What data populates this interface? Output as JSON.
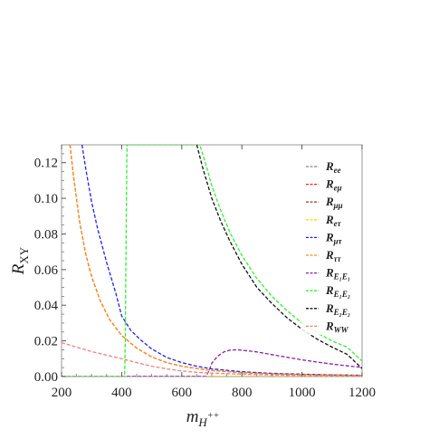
{
  "chart_data": {
    "type": "line",
    "xlabel": "m_{H++}",
    "ylabel": "R_XY",
    "xlim": [
      200,
      1200
    ],
    "ylim": [
      0,
      0.13
    ],
    "x_ticks": [
      200,
      400,
      600,
      800,
      1000,
      1200
    ],
    "y_ticks": [
      0.0,
      0.02,
      0.04,
      0.06,
      0.08,
      0.1,
      0.12
    ],
    "x_tick_labels": [
      "200",
      "400",
      "600",
      "800",
      "1000",
      "1200"
    ],
    "y_tick_labels": [
      "0.00",
      "0.02",
      "0.04",
      "0.06",
      "0.08",
      "0.10",
      "0.12"
    ],
    "grid": false,
    "legend_position": "top-right",
    "series": [
      {
        "name": "R_ee",
        "label": "R",
        "sub": "ee",
        "color": "#888888",
        "dashed": true,
        "x": [
          200,
          300,
          400,
          500,
          600,
          700,
          800,
          900,
          1000,
          1100,
          1200
        ],
        "y": [
          0.0,
          0.0,
          0.0,
          0.0,
          0.0,
          0.0,
          0.0,
          0.0,
          0.0,
          0.0,
          0.0
        ]
      },
      {
        "name": "R_eμ",
        "label": "R",
        "sub": "eμ",
        "color": "#ff2020",
        "dashed": true,
        "x": [
          200,
          300,
          400,
          500,
          600,
          700,
          800,
          900,
          1000,
          1100,
          1200
        ],
        "y": [
          0.0,
          0.0,
          0.0,
          0.0,
          0.0,
          0.0,
          0.0,
          0.0,
          0.0,
          0.0,
          0.0
        ]
      },
      {
        "name": "R_μμ",
        "label": "R",
        "sub": "μμ",
        "color": "#a0522d",
        "dashed": true,
        "x": [
          228,
          240,
          260,
          280,
          300,
          330,
          360,
          400,
          450,
          500,
          550,
          600,
          650,
          700,
          800,
          900,
          1000,
          1100,
          1200
        ],
        "y": [
          0.13,
          0.112,
          0.087,
          0.069,
          0.056,
          0.042,
          0.032,
          0.023,
          0.016,
          0.011,
          0.0078,
          0.0058,
          0.0045,
          0.0034,
          0.0022,
          0.0015,
          0.0011,
          0.0008,
          0.0006
        ]
      },
      {
        "name": "R_eτ",
        "label": "R",
        "sub": "eτ",
        "color": "#f2e600",
        "dashed": true,
        "x": [
          200,
          300,
          400,
          500,
          600,
          700,
          800,
          900,
          1000,
          1100,
          1200
        ],
        "y": [
          0.0,
          0.0,
          0.0,
          0.0,
          0.0,
          0.0,
          0.0,
          0.0,
          0.0,
          0.0,
          0.0
        ]
      },
      {
        "name": "R_μτ",
        "label": "R",
        "sub": "μτ",
        "color": "#2222ee",
        "dashed": true,
        "x": [
          268,
          280,
          300,
          320,
          350,
          380,
          400,
          430,
          460,
          500,
          550,
          600,
          650,
          700,
          800,
          900,
          1000,
          1100,
          1200
        ],
        "y": [
          0.13,
          0.117,
          0.098,
          0.083,
          0.064,
          0.047,
          0.034,
          0.026,
          0.021,
          0.0155,
          0.0107,
          0.0078,
          0.0058,
          0.0043,
          0.0027,
          0.0018,
          0.0013,
          0.0009,
          0.0007
        ]
      },
      {
        "name": "R_ττ",
        "label": "R",
        "sub": "ττ",
        "color": "#ff8c1a",
        "dashed": true,
        "x": [
          228,
          240,
          260,
          280,
          300,
          330,
          360,
          400,
          450,
          500,
          550,
          600,
          650,
          700,
          800,
          900,
          1000,
          1100,
          1200
        ],
        "y": [
          0.13,
          0.112,
          0.087,
          0.069,
          0.056,
          0.042,
          0.032,
          0.023,
          0.016,
          0.011,
          0.0078,
          0.0058,
          0.0045,
          0.0034,
          0.0022,
          0.0015,
          0.0011,
          0.0008,
          0.0006
        ]
      },
      {
        "name": "R_E1E1",
        "label": "R",
        "sub": "E₁E₁",
        "color": "#8b1fa8",
        "dashed": true,
        "x": [
          200,
          400,
          600,
          680,
          690,
          700,
          720,
          740,
          760,
          780,
          800,
          850,
          900,
          950,
          1000,
          1050,
          1100,
          1150,
          1200
        ],
        "y": [
          0.0,
          0.0,
          0.0,
          0.0,
          0.003,
          0.0075,
          0.0115,
          0.0138,
          0.0148,
          0.015,
          0.0148,
          0.0138,
          0.0123,
          0.0108,
          0.0094,
          0.0081,
          0.007,
          0.006,
          0.0052
        ]
      },
      {
        "name": "R_E1E2",
        "label": "R",
        "sub": "E₁E₂",
        "color": "#33ee33",
        "dashed": true,
        "x": [
          200,
          300,
          410,
          412,
          413,
          414,
          415,
          416,
          417,
          418,
          660,
          680,
          700,
          730,
          760,
          800,
          850,
          900,
          950,
          1000,
          1050,
          1100,
          1150,
          1200
        ],
        "y": [
          0.0,
          0.0,
          0.0,
          0.02,
          0.04,
          0.06,
          0.08,
          0.1,
          0.12,
          0.13,
          0.13,
          0.119,
          0.107,
          0.093,
          0.081,
          0.068,
          0.055,
          0.045,
          0.037,
          0.03,
          0.0245,
          0.02,
          0.0165,
          0.0087
        ]
      },
      {
        "name": "R_E2E2",
        "label": "R",
        "sub": "E₂E₂",
        "color": "#111111",
        "dashed": true,
        "x": [
          650,
          670,
          700,
          730,
          760,
          800,
          850,
          900,
          950,
          1000,
          1050,
          1100,
          1150,
          1200
        ],
        "y": [
          0.13,
          0.117,
          0.1,
          0.087,
          0.076,
          0.063,
          0.05,
          0.041,
          0.033,
          0.0265,
          0.021,
          0.0165,
          0.0125,
          0.0045
        ]
      },
      {
        "name": "R_WW",
        "label": "R",
        "sub": "WW",
        "color": "#f08080",
        "dashed": true,
        "x": [
          200,
          250,
          300,
          350,
          400,
          450,
          500,
          550,
          600,
          650,
          700,
          800,
          900,
          1000,
          1100,
          1200
        ],
        "y": [
          0.019,
          0.0165,
          0.014,
          0.012,
          0.01,
          0.0078,
          0.0058,
          0.0043,
          0.0031,
          0.0024,
          0.0019,
          0.0013,
          0.0009,
          0.0006,
          0.0004,
          0.0003
        ]
      }
    ]
  },
  "colors": {
    "frame": "#999999",
    "text": "#222222"
  }
}
